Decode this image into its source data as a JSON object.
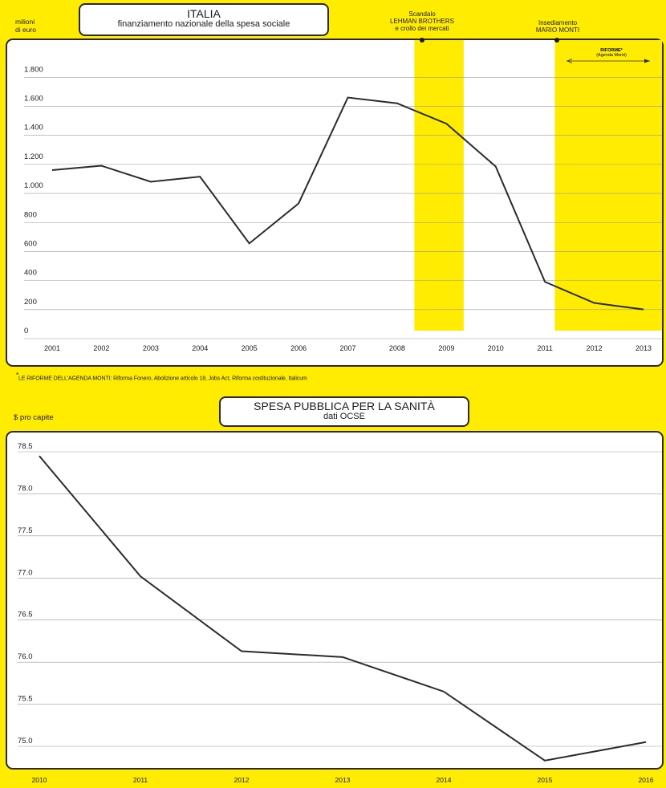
{
  "chart_data": [
    {
      "type": "line",
      "title": "ITALIA",
      "subtitle": "finanziamento nazionale della spesa sociale",
      "ylabel": "milioni di euro",
      "ylabel_lines": [
        "milioni",
        "di euro"
      ],
      "x": [
        "2001",
        "2002",
        "2003",
        "2004",
        "2005",
        "2006",
        "2007",
        "2008",
        "2009",
        "2010",
        "2011",
        "2012",
        "2013"
      ],
      "values": [
        1100,
        1130,
        1020,
        1055,
        595,
        870,
        1600,
        1560,
        1420,
        1125,
        330,
        185,
        140
      ],
      "ylim": [
        0,
        1800
      ],
      "ytick_values": [
        0,
        200,
        400,
        600,
        800,
        1000,
        1200,
        1400,
        1600,
        1800
      ],
      "ytick_labels": [
        "0",
        "200",
        "400",
        "600",
        "800",
        "1.000",
        "1.200",
        "1.400",
        "1.600",
        "1.800"
      ],
      "grid": true,
      "line_color": "#2b2b2b",
      "highlight_color": "#ffec00",
      "events": [
        {
          "lines": [
            "Scandalo",
            "LEHMAN BROTHERS",
            "e crollo dei mercati"
          ],
          "band_from": 2008.35,
          "band_to": 2009.35
        },
        {
          "lines": [
            "Insediamento",
            "MARIO MONTI"
          ],
          "band_from": 2011.2,
          "band_to": 2013.6
        }
      ],
      "annotation": {
        "lines": [
          "RIFORME*",
          "(Agenda Monti)"
        ]
      },
      "footnote": {
        "marker": "*",
        "lead": "LE RIFORME DELL'AGENDA MONTI:",
        "text": " Riforma Fonero, Abolizione articolo 18, Jobs Act, Riforma costituzionale, Italicum"
      }
    },
    {
      "type": "line",
      "title": "SPESA PUBBLICA PER LA SANITÀ",
      "subtitle": "dati OCSE",
      "ylabel": "$ pro capite",
      "x": [
        "2010",
        "2011",
        "2012",
        "2013",
        "2014",
        "2015",
        "2016"
      ],
      "values": [
        78.45,
        77.02,
        76.13,
        76.06,
        75.65,
        74.83,
        75.05
      ],
      "ylim": [
        74.8,
        78.55
      ],
      "ytick_values": [
        75.0,
        75.5,
        76.0,
        76.5,
        77.0,
        77.5,
        78.0,
        78.5
      ],
      "ytick_labels": [
        "75.0",
        "75.5",
        "76.0",
        "76.5",
        "77.0",
        "77.5",
        "78.0",
        "78.5"
      ],
      "grid": true,
      "line_color": "#2b2b2b"
    }
  ]
}
